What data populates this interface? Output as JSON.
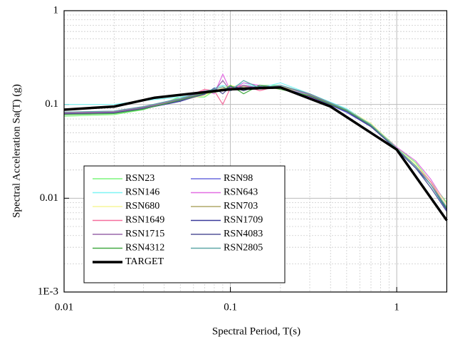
{
  "chart_data": {
    "type": "line",
    "xlabel": "Spectral Period, T(s)",
    "ylabel": "Spectral Acceleration Sa(T) (g)",
    "xscale": "log",
    "yscale": "log",
    "xlim": [
      0.01,
      2
    ],
    "ylim": [
      0.001,
      1
    ],
    "xticks": [
      0.01,
      0.1,
      1
    ],
    "yticks": [
      {
        "value": 0.001,
        "label": "1E-3"
      },
      0.01,
      0.1,
      1
    ],
    "grid": true,
    "minor_grid": true,
    "x": [
      0.01,
      0.02,
      0.03,
      0.05,
      0.07,
      0.08,
      0.09,
      0.1,
      0.12,
      0.15,
      0.2,
      0.3,
      0.5,
      0.7,
      1,
      1.3,
      1.6,
      2
    ],
    "series": [
      {
        "name": "RSN23",
        "color": "#7cf57c",
        "values": [
          0.075,
          0.078,
          0.088,
          0.12,
          0.12,
          0.14,
          0.14,
          0.16,
          0.14,
          0.16,
          0.16,
          0.13,
          0.088,
          0.062,
          0.035,
          0.024,
          0.015,
          0.009
        ]
      },
      {
        "name": "RSN98",
        "color": "#6b6bdd",
        "values": [
          0.08,
          0.082,
          0.092,
          0.11,
          0.135,
          0.14,
          0.15,
          0.14,
          0.16,
          0.15,
          0.15,
          0.125,
          0.082,
          0.058,
          0.034,
          0.022,
          0.014,
          0.008
        ]
      },
      {
        "name": "RSN146",
        "color": "#7ff5f5",
        "values": [
          0.1,
          0.1,
          0.11,
          0.12,
          0.13,
          0.15,
          0.16,
          0.15,
          0.17,
          0.15,
          0.17,
          0.13,
          0.09,
          0.062,
          0.033,
          0.021,
          0.013,
          0.0075
        ]
      },
      {
        "name": "RSN643",
        "color": "#e36ee3",
        "values": [
          0.082,
          0.085,
          0.095,
          0.115,
          0.14,
          0.13,
          0.21,
          0.14,
          0.17,
          0.16,
          0.15,
          0.12,
          0.085,
          0.06,
          0.035,
          0.025,
          0.016,
          0.0085
        ]
      },
      {
        "name": "RSN680",
        "color": "#f5f59a",
        "values": [
          0.078,
          0.08,
          0.09,
          0.11,
          0.125,
          0.14,
          0.15,
          0.16,
          0.15,
          0.155,
          0.145,
          0.125,
          0.088,
          0.063,
          0.034,
          0.023,
          0.015,
          0.0085
        ]
      },
      {
        "name": "RSN703",
        "color": "#b0a86a",
        "values": [
          0.08,
          0.083,
          0.092,
          0.112,
          0.13,
          0.135,
          0.15,
          0.145,
          0.155,
          0.15,
          0.155,
          0.128,
          0.086,
          0.061,
          0.034,
          0.022,
          0.014,
          0.008
        ]
      },
      {
        "name": "RSN1649",
        "color": "#f56d9d",
        "values": [
          0.082,
          0.084,
          0.094,
          0.113,
          0.145,
          0.14,
          0.1,
          0.15,
          0.16,
          0.14,
          0.16,
          0.13,
          0.087,
          0.06,
          0.034,
          0.022,
          0.015,
          0.0078
        ]
      },
      {
        "name": "RSN1709",
        "color": "#3a3a9a",
        "values": [
          0.08,
          0.082,
          0.09,
          0.108,
          0.13,
          0.145,
          0.14,
          0.155,
          0.15,
          0.155,
          0.15,
          0.122,
          0.084,
          0.058,
          0.033,
          0.021,
          0.014,
          0.0075
        ]
      },
      {
        "name": "RSN1715",
        "color": "#9966aa",
        "values": [
          0.081,
          0.083,
          0.093,
          0.114,
          0.135,
          0.14,
          0.18,
          0.14,
          0.16,
          0.15,
          0.16,
          0.127,
          0.086,
          0.06,
          0.034,
          0.022,
          0.014,
          0.008
        ]
      },
      {
        "name": "RSN4083",
        "color": "#555599",
        "values": [
          0.079,
          0.081,
          0.091,
          0.11,
          0.128,
          0.15,
          0.13,
          0.155,
          0.14,
          0.16,
          0.15,
          0.123,
          0.085,
          0.059,
          0.033,
          0.021,
          0.013,
          0.0072
        ]
      },
      {
        "name": "RSN4312",
        "color": "#44aa44",
        "values": [
          0.078,
          0.08,
          0.089,
          0.112,
          0.132,
          0.135,
          0.14,
          0.16,
          0.13,
          0.16,
          0.145,
          0.124,
          0.086,
          0.06,
          0.034,
          0.022,
          0.014,
          0.0078
        ]
      },
      {
        "name": "RSN2805",
        "color": "#5fa8a8",
        "values": [
          0.083,
          0.085,
          0.095,
          0.116,
          0.138,
          0.145,
          0.155,
          0.14,
          0.18,
          0.15,
          0.16,
          0.13,
          0.088,
          0.061,
          0.034,
          0.022,
          0.014,
          0.008
        ]
      },
      {
        "name": "TARGET",
        "color": "#000000",
        "x": [
          0.01,
          0.02,
          0.035,
          0.1,
          0.2,
          0.4,
          1,
          2
        ],
        "values": [
          0.088,
          0.095,
          0.118,
          0.145,
          0.152,
          0.095,
          0.033,
          0.0058
        ]
      }
    ]
  }
}
